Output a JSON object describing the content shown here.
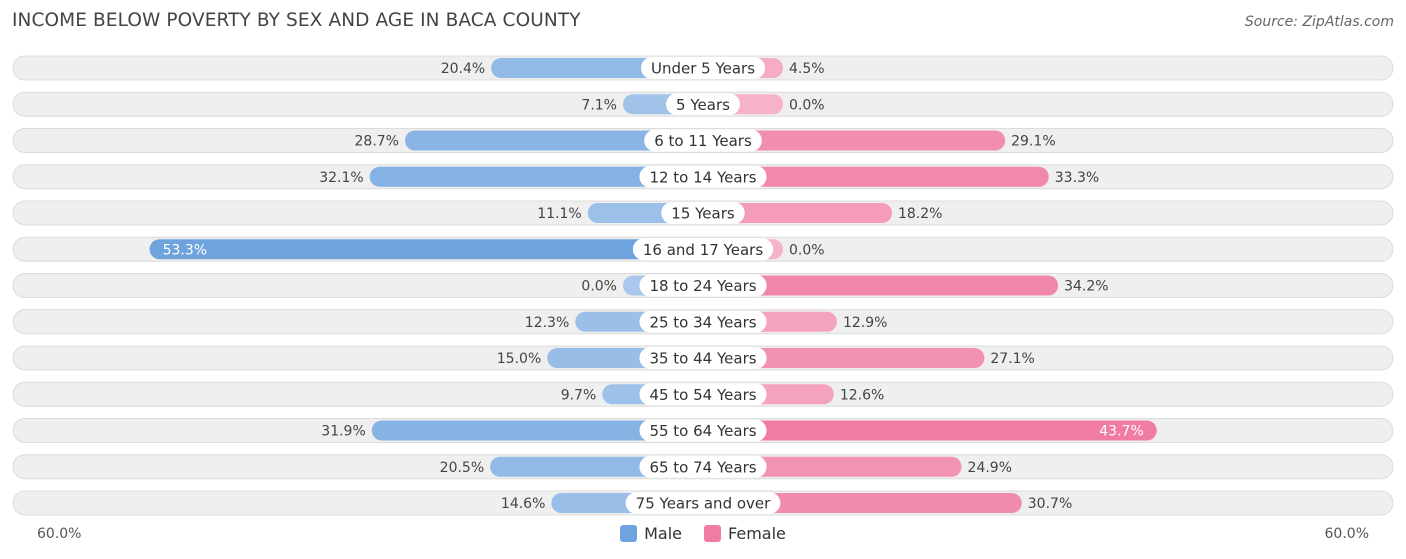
{
  "header": {
    "title": "INCOME BELOW POVERTY BY SEX AND AGE IN BACA COUNTY",
    "source": "Source: ZipAtlas.com"
  },
  "colors": {
    "male": "#6ea3de",
    "male_light": "#a9c8ec",
    "female": "#f07ca3",
    "female_light": "#f6b2c8",
    "row_bg": "#efefef",
    "row_border": "#dcdcdc"
  },
  "chart_data": {
    "type": "bar",
    "orientation": "horizontal-diverging",
    "title": "INCOME BELOW POVERTY BY SEX AND AGE IN BACA COUNTY",
    "categories": [
      "Under 5 Years",
      "5 Years",
      "6 to 11 Years",
      "12 to 14 Years",
      "15 Years",
      "16 and 17 Years",
      "18 to 24 Years",
      "25 to 34 Years",
      "35 to 44 Years",
      "45 to 54 Years",
      "55 to 64 Years",
      "65 to 74 Years",
      "75 Years and over"
    ],
    "series": [
      {
        "name": "Male",
        "values": [
          20.4,
          7.1,
          28.7,
          32.1,
          11.1,
          53.3,
          0.0,
          12.3,
          15.0,
          9.7,
          31.9,
          20.5,
          14.6
        ],
        "labels": [
          "20.4%",
          "7.1%",
          "28.7%",
          "32.1%",
          "11.1%",
          "53.3%",
          "0.0%",
          "12.3%",
          "15.0%",
          "9.7%",
          "31.9%",
          "20.5%",
          "14.6%"
        ]
      },
      {
        "name": "Female",
        "values": [
          4.5,
          0.0,
          29.1,
          33.3,
          18.2,
          0.0,
          34.2,
          12.9,
          27.1,
          12.6,
          43.7,
          24.9,
          30.7
        ],
        "labels": [
          "4.5%",
          "0.0%",
          "29.1%",
          "33.3%",
          "18.2%",
          "0.0%",
          "34.2%",
          "12.9%",
          "27.1%",
          "12.6%",
          "43.7%",
          "24.9%",
          "30.7%"
        ]
      }
    ],
    "xlim": [
      -60,
      60
    ],
    "axis_left_label": "60.0%",
    "axis_right_label": "60.0%",
    "legend": [
      "Male",
      "Female"
    ],
    "legend_position": "bottom-center"
  }
}
